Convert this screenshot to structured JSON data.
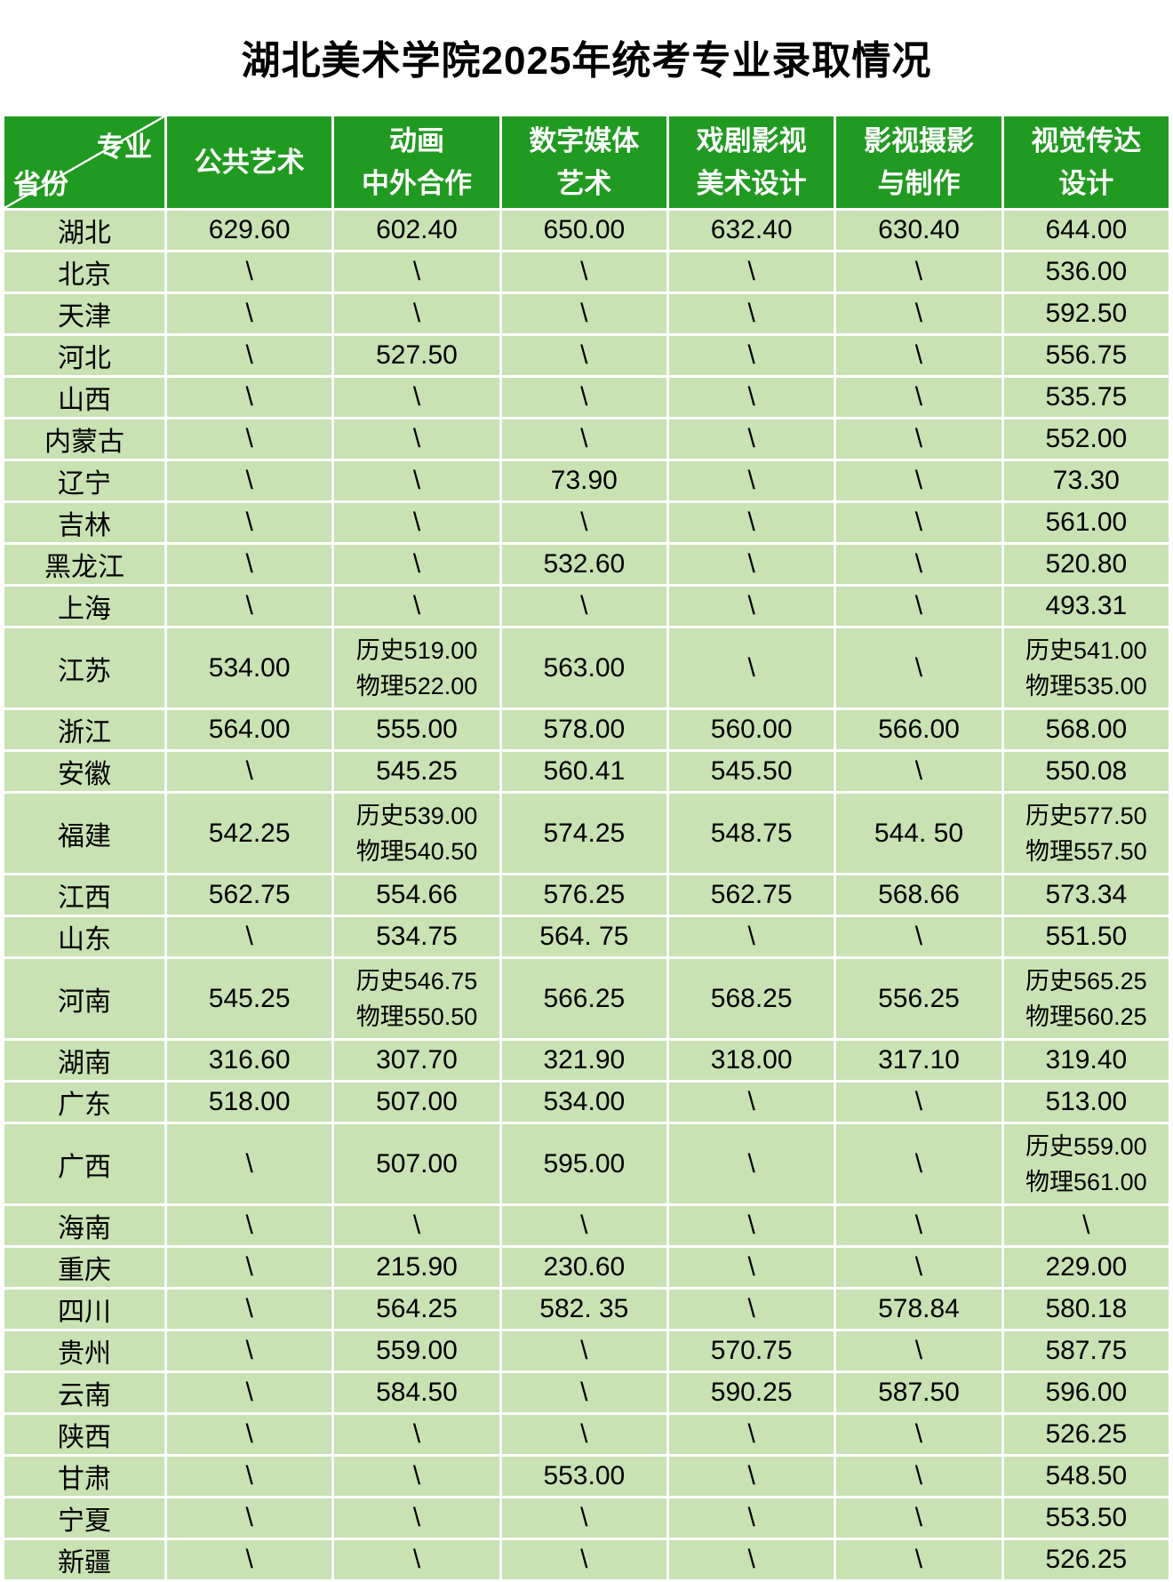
{
  "title": "湖北美术学院2025年统考专业录取情况",
  "corner": {
    "top_right": "专业",
    "bottom_left": "省份"
  },
  "header_lines": [
    [
      "公共艺术"
    ],
    [
      "动画",
      "中外合作"
    ],
    [
      "数字媒体",
      "艺术"
    ],
    [
      "戏剧影视",
      "美术设计"
    ],
    [
      "影视摄影",
      "与制作"
    ],
    [
      "视觉传达",
      "设计"
    ]
  ],
  "colors": {
    "header_bg": "#219A21",
    "row_bg": "#C8E2B3",
    "grid_line": "#FFFFFF",
    "header_text": "#FFFFFF",
    "body_text": "#000000"
  },
  "chart_data": {
    "type": "table",
    "title": "湖北美术学院2025年统考专业录取情况",
    "columns": [
      "省份",
      "公共艺术",
      "动画中外合作",
      "数字媒体艺术",
      "戏剧影视美术设计",
      "影视摄影与制作",
      "视觉传达设计"
    ],
    "rows": [
      {
        "province": "湖北",
        "cells": [
          [
            "629.60"
          ],
          [
            "602.40"
          ],
          [
            "650.00"
          ],
          [
            "632.40"
          ],
          [
            "630.40"
          ],
          [
            "644.00"
          ]
        ]
      },
      {
        "province": "北京",
        "cells": [
          [
            "\\"
          ],
          [
            "\\"
          ],
          [
            "\\"
          ],
          [
            "\\"
          ],
          [
            "\\"
          ],
          [
            "536.00"
          ]
        ]
      },
      {
        "province": "天津",
        "cells": [
          [
            "\\"
          ],
          [
            "\\"
          ],
          [
            "\\"
          ],
          [
            "\\"
          ],
          [
            "\\"
          ],
          [
            "592.50"
          ]
        ]
      },
      {
        "province": "河北",
        "cells": [
          [
            "\\"
          ],
          [
            "527.50"
          ],
          [
            "\\"
          ],
          [
            "\\"
          ],
          [
            "\\"
          ],
          [
            "556.75"
          ]
        ]
      },
      {
        "province": "山西",
        "cells": [
          [
            "\\"
          ],
          [
            "\\"
          ],
          [
            "\\"
          ],
          [
            "\\"
          ],
          [
            "\\"
          ],
          [
            "535.75"
          ]
        ]
      },
      {
        "province": "内蒙古",
        "cells": [
          [
            "\\"
          ],
          [
            "\\"
          ],
          [
            "\\"
          ],
          [
            "\\"
          ],
          [
            "\\"
          ],
          [
            "552.00"
          ]
        ]
      },
      {
        "province": "辽宁",
        "cells": [
          [
            "\\"
          ],
          [
            "\\"
          ],
          [
            "73.90"
          ],
          [
            "\\"
          ],
          [
            "\\"
          ],
          [
            "73.30"
          ]
        ]
      },
      {
        "province": "吉林",
        "cells": [
          [
            "\\"
          ],
          [
            "\\"
          ],
          [
            "\\"
          ],
          [
            "\\"
          ],
          [
            "\\"
          ],
          [
            "561.00"
          ]
        ]
      },
      {
        "province": "黑龙江",
        "cells": [
          [
            "\\"
          ],
          [
            "\\"
          ],
          [
            "532.60"
          ],
          [
            "\\"
          ],
          [
            "\\"
          ],
          [
            "520.80"
          ]
        ]
      },
      {
        "province": "上海",
        "cells": [
          [
            "\\"
          ],
          [
            "\\"
          ],
          [
            "\\"
          ],
          [
            "\\"
          ],
          [
            "\\"
          ],
          [
            "493.31"
          ]
        ]
      },
      {
        "province": "江苏",
        "cells": [
          [
            "534.00"
          ],
          [
            "历史519.00",
            "物理522.00"
          ],
          [
            "563.00"
          ],
          [
            "\\"
          ],
          [
            "\\"
          ],
          [
            "历史541.00",
            "物理535.00"
          ]
        ]
      },
      {
        "province": "浙江",
        "cells": [
          [
            "564.00"
          ],
          [
            "555.00"
          ],
          [
            "578.00"
          ],
          [
            "560.00"
          ],
          [
            "566.00"
          ],
          [
            "568.00"
          ]
        ]
      },
      {
        "province": "安徽",
        "cells": [
          [
            "\\"
          ],
          [
            "545.25"
          ],
          [
            "560.41"
          ],
          [
            "545.50"
          ],
          [
            "\\"
          ],
          [
            "550.08"
          ]
        ]
      },
      {
        "province": "福建",
        "cells": [
          [
            "542.25"
          ],
          [
            "历史539.00",
            "物理540.50"
          ],
          [
            "574.25"
          ],
          [
            "548.75"
          ],
          [
            "544. 50"
          ],
          [
            "历史577.50",
            "物理557.50"
          ]
        ]
      },
      {
        "province": "江西",
        "cells": [
          [
            "562.75"
          ],
          [
            "554.66"
          ],
          [
            "576.25"
          ],
          [
            "562.75"
          ],
          [
            "568.66"
          ],
          [
            "573.34"
          ]
        ]
      },
      {
        "province": "山东",
        "cells": [
          [
            "\\"
          ],
          [
            "534.75"
          ],
          [
            "564. 75"
          ],
          [
            "\\"
          ],
          [
            "\\"
          ],
          [
            "551.50"
          ]
        ]
      },
      {
        "province": "河南",
        "cells": [
          [
            "545.25"
          ],
          [
            "历史546.75",
            "物理550.50"
          ],
          [
            "566.25"
          ],
          [
            "568.25"
          ],
          [
            "556.25"
          ],
          [
            "历史565.25",
            "物理560.25"
          ]
        ]
      },
      {
        "province": "湖南",
        "cells": [
          [
            "316.60"
          ],
          [
            "307.70"
          ],
          [
            "321.90"
          ],
          [
            "318.00"
          ],
          [
            "317.10"
          ],
          [
            "319.40"
          ]
        ]
      },
      {
        "province": "广东",
        "cells": [
          [
            "518.00"
          ],
          [
            "507.00"
          ],
          [
            "534.00"
          ],
          [
            "\\"
          ],
          [
            "\\"
          ],
          [
            "513.00"
          ]
        ]
      },
      {
        "province": "广西",
        "cells": [
          [
            "\\"
          ],
          [
            "507.00"
          ],
          [
            "595.00"
          ],
          [
            "\\"
          ],
          [
            "\\"
          ],
          [
            "历史559.00",
            "物理561.00"
          ]
        ]
      },
      {
        "province": "海南",
        "cells": [
          [
            "\\"
          ],
          [
            "\\"
          ],
          [
            "\\"
          ],
          [
            "\\"
          ],
          [
            "\\"
          ],
          [
            "\\"
          ]
        ]
      },
      {
        "province": "重庆",
        "cells": [
          [
            "\\"
          ],
          [
            "215.90"
          ],
          [
            "230.60"
          ],
          [
            "\\"
          ],
          [
            "\\"
          ],
          [
            "229.00"
          ]
        ]
      },
      {
        "province": "四川",
        "cells": [
          [
            "\\"
          ],
          [
            "564.25"
          ],
          [
            "582. 35"
          ],
          [
            "\\"
          ],
          [
            "578.84"
          ],
          [
            "580.18"
          ]
        ]
      },
      {
        "province": "贵州",
        "cells": [
          [
            "\\"
          ],
          [
            "559.00"
          ],
          [
            "\\"
          ],
          [
            "570.75"
          ],
          [
            "\\"
          ],
          [
            "587.75"
          ]
        ]
      },
      {
        "province": "云南",
        "cells": [
          [
            "\\"
          ],
          [
            "584.50"
          ],
          [
            "\\"
          ],
          [
            "590.25"
          ],
          [
            "587.50"
          ],
          [
            "596.00"
          ]
        ]
      },
      {
        "province": "陕西",
        "cells": [
          [
            "\\"
          ],
          [
            "\\"
          ],
          [
            "\\"
          ],
          [
            "\\"
          ],
          [
            "\\"
          ],
          [
            "526.25"
          ]
        ]
      },
      {
        "province": "甘肃",
        "cells": [
          [
            "\\"
          ],
          [
            "\\"
          ],
          [
            "553.00"
          ],
          [
            "\\"
          ],
          [
            "\\"
          ],
          [
            "548.50"
          ]
        ]
      },
      {
        "province": "宁夏",
        "cells": [
          [
            "\\"
          ],
          [
            "\\"
          ],
          [
            "\\"
          ],
          [
            "\\"
          ],
          [
            "\\"
          ],
          [
            "553.50"
          ]
        ]
      },
      {
        "province": "新疆",
        "cells": [
          [
            "\\"
          ],
          [
            "\\"
          ],
          [
            "\\"
          ],
          [
            "\\"
          ],
          [
            "\\"
          ],
          [
            "526.25"
          ]
        ]
      }
    ]
  }
}
